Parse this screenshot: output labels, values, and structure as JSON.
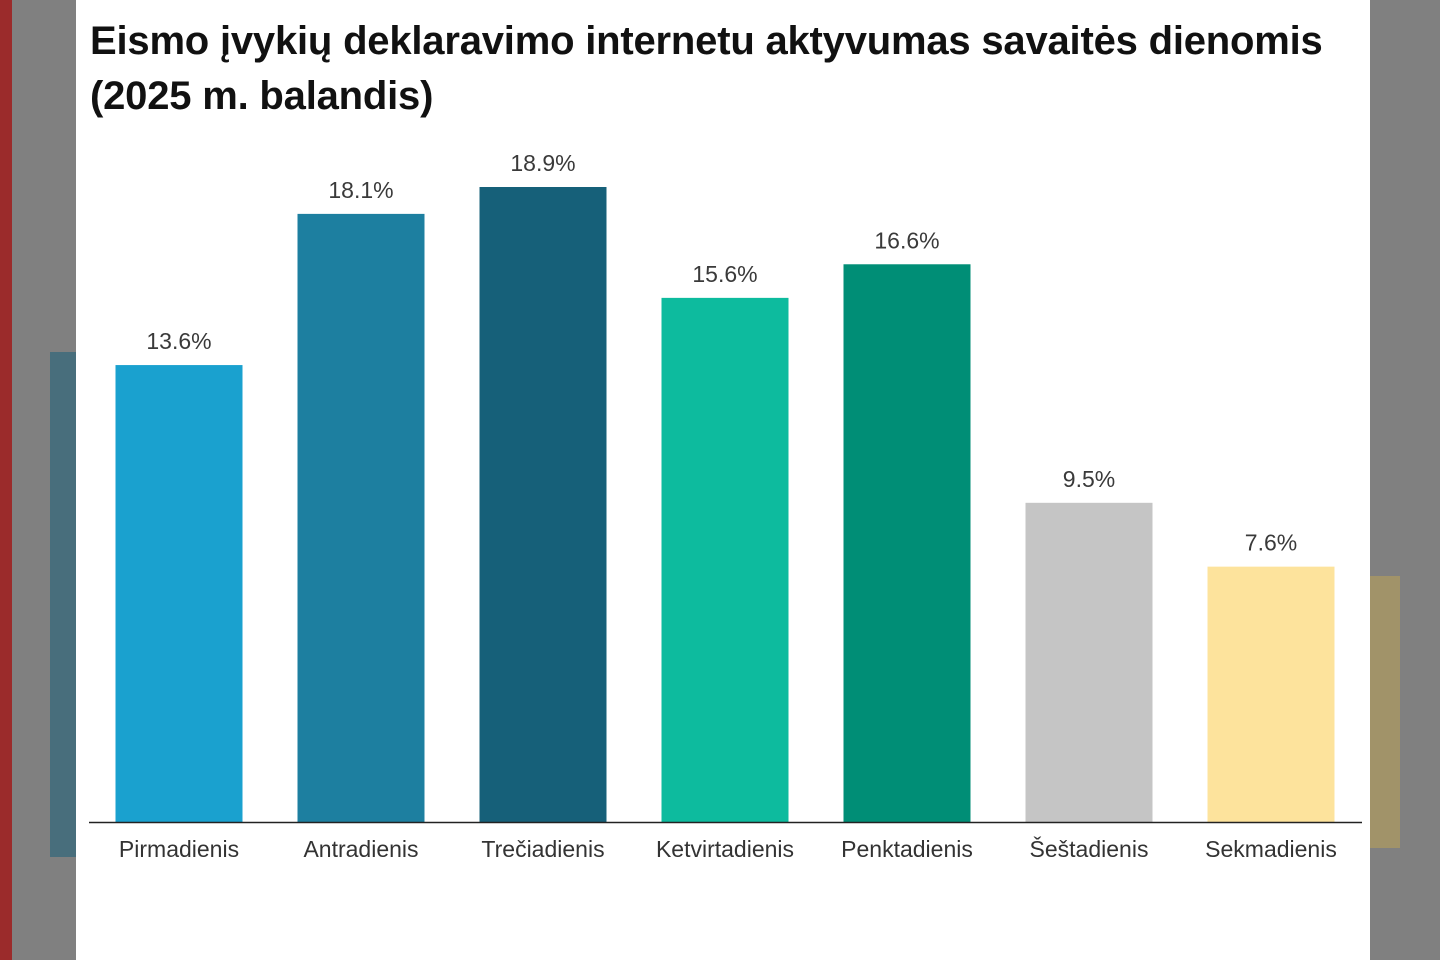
{
  "chart_data": {
    "type": "bar",
    "title": "Eismo įvykių deklaravimo internetu aktyvumas savaitės dienomis (2025 m. balandis)",
    "categories": [
      "Pirmadienis",
      "Antradienis",
      "Trečiadienis",
      "Ketvirtadienis",
      "Penktadienis",
      "Šeštadienis",
      "Sekmadienis"
    ],
    "values": [
      13.6,
      18.1,
      18.9,
      15.6,
      16.6,
      9.5,
      7.6
    ],
    "value_labels": [
      "13.6%",
      "18.1%",
      "18.9%",
      "15.6%",
      "16.6%",
      "9.5%",
      "7.6%"
    ],
    "unit": "%",
    "colors": [
      "#1aa1cf",
      "#1d7fa0",
      "#166079",
      "#0dbb9e",
      "#008e76",
      "#c5c5c5",
      "#fde39c"
    ],
    "ylim": [
      0,
      18.9
    ],
    "grid": false,
    "axis_color": "#222222"
  }
}
